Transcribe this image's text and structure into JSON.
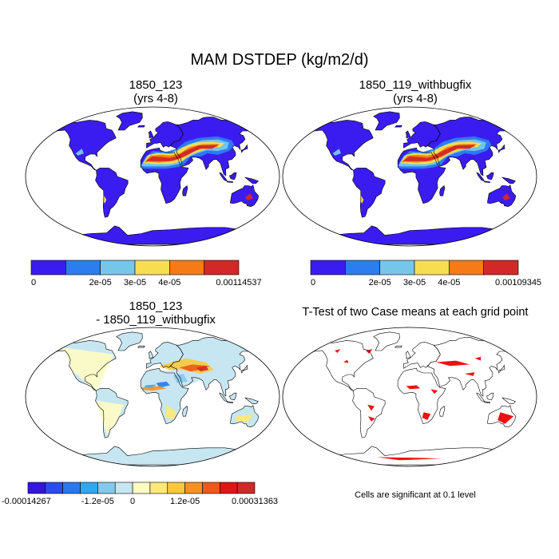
{
  "chart_data": {
    "type": "map",
    "title": "MAM DSTDEP (kg/m2/d)",
    "panels": [
      {
        "id": "case1",
        "title_line1": "1850_123",
        "title_line2": "(yrs 4-8)",
        "colorbar": {
          "colors": [
            "#3a1cf0",
            "#2c7ef0",
            "#76c6ea",
            "#f6de50",
            "#f77a16",
            "#d42828"
          ],
          "tick_labels": [
            "0",
            "2e-05",
            "3e-05",
            "4e-05",
            "0.00114537"
          ],
          "tick_indices": [
            0,
            2,
            3,
            4,
            6
          ]
        }
      },
      {
        "id": "case2",
        "title_line1": "1850_119_withbugfix",
        "title_line2": "(yrs 4-8)",
        "colorbar": {
          "colors": [
            "#3a1cf0",
            "#2c7ef0",
            "#76c6ea",
            "#f6de50",
            "#f77a16",
            "#d42828"
          ],
          "tick_labels": [
            "0",
            "2e-05",
            "3e-05",
            "4e-05",
            "0.00109345"
          ],
          "tick_indices": [
            0,
            2,
            3,
            4,
            6
          ]
        }
      },
      {
        "id": "diff",
        "title_line1": "1850_123",
        "title_line2": "- 1850_119_withbugfix",
        "colorbar": {
          "colors": [
            "#3316e0",
            "#2c4cf0",
            "#2a78f0",
            "#2fa8f0",
            "#86c8ea",
            "#c6e6f2",
            "#fffcc4",
            "#fde876",
            "#fbc83a",
            "#f79020",
            "#f05818",
            "#e01616",
            "#cf2a2a"
          ],
          "tick_labels": [
            "-0.00014267",
            "-1.2e-05",
            "0",
            "1.2e-05",
            "0.00031363"
          ],
          "tick_indices": [
            0,
            4,
            6,
            9,
            13
          ]
        }
      },
      {
        "id": "ttest",
        "title_line1": "T-Test of two Case means at each grid point",
        "note": "Cells are significant at 0.1 level"
      }
    ]
  }
}
